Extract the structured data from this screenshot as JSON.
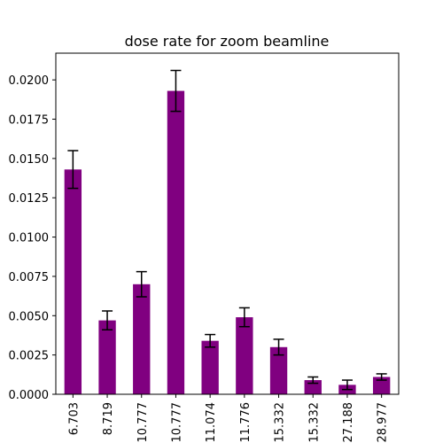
{
  "chart_data": {
    "type": "bar",
    "title": "dose rate for zoom beamline",
    "xlabel": "",
    "ylabel": "",
    "ylim": [
      0,
      0.0217
    ],
    "grid": false,
    "bar_color": "#800080",
    "error_color": "#000000",
    "categories": [
      "6.703",
      "8.719",
      "10.777",
      "10.777",
      "11.074",
      "11.776",
      "15.332",
      "15.332",
      "27.188",
      "28.977"
    ],
    "values": [
      0.0143,
      0.0047,
      0.007,
      0.0193,
      0.0034,
      0.0049,
      0.003,
      0.0009,
      0.0006,
      0.0011
    ],
    "errors": [
      0.0012,
      0.0006,
      0.0008,
      0.0013,
      0.0004,
      0.0006,
      0.0005,
      0.0002,
      0.0003,
      0.0002
    ],
    "yticks": [
      "0.0000",
      "0.0025",
      "0.0050",
      "0.0075",
      "0.0100",
      "0.0125",
      "0.0150",
      "0.0175",
      "0.0200"
    ]
  }
}
